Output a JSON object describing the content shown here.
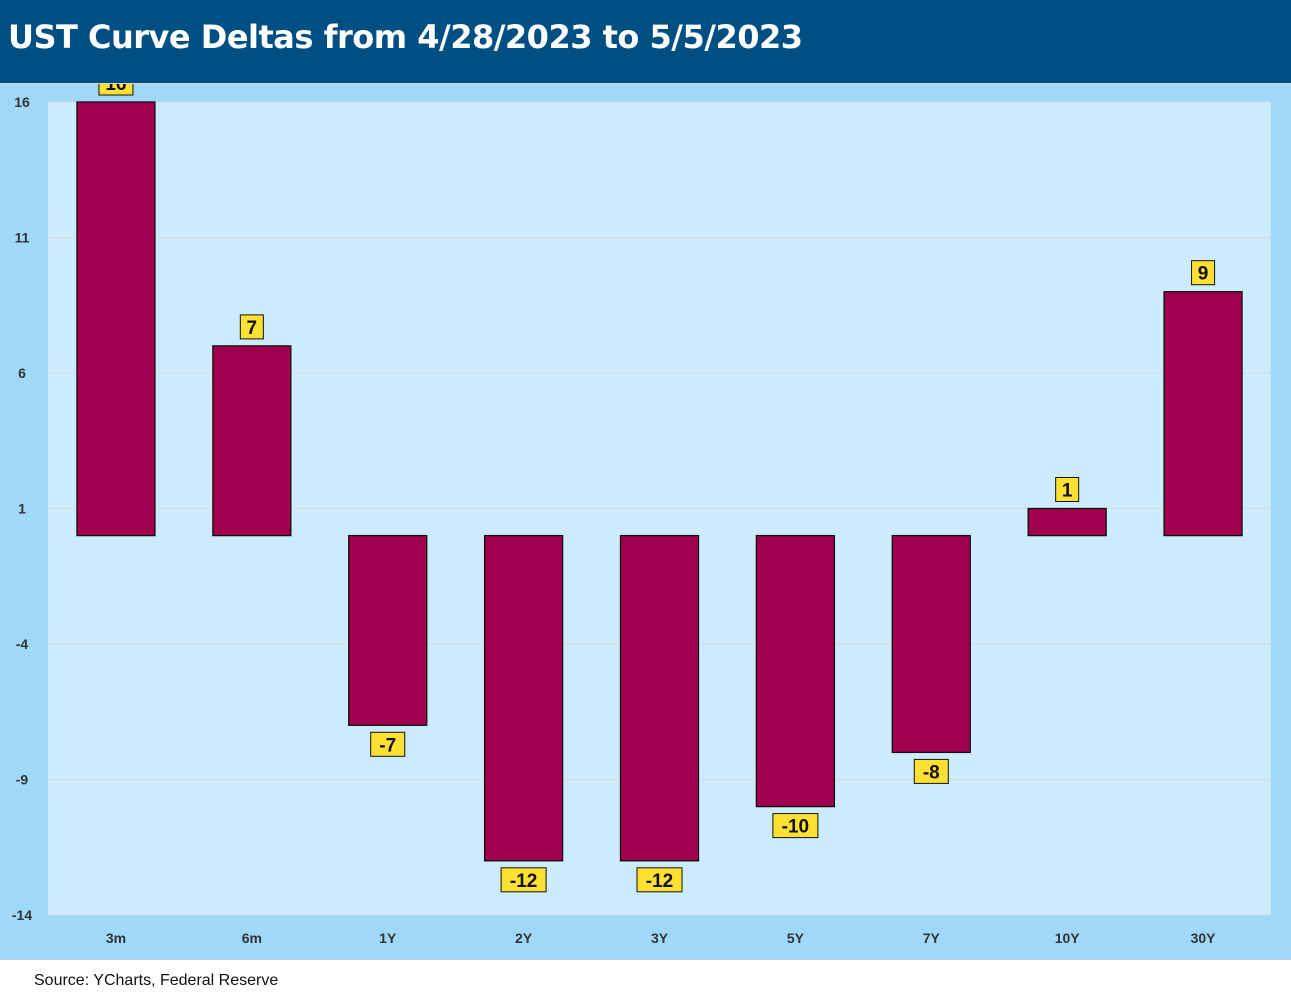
{
  "header": {
    "title": "UST Curve Deltas from 4/28/2023 to 5/5/2023"
  },
  "footer": {
    "source": "Source: YCharts, Federal Reserve"
  },
  "colors": {
    "header_bg": "#004F82",
    "frame_bg": "#9FD8F8",
    "plot_bg": "#CCEBFC",
    "bar_fill": "#A0004E",
    "label_fill": "#FFE033",
    "gridline": "#D9D9D9"
  },
  "chart_data": {
    "type": "bar",
    "title": "UST Curve Deltas from 4/28/2023 to 5/5/2023",
    "xlabel": "",
    "ylabel": "",
    "categories": [
      "3m",
      "6m",
      "1Y",
      "2Y",
      "3Y",
      "5Y",
      "7Y",
      "10Y",
      "30Y"
    ],
    "values": [
      16,
      7,
      -7,
      -12,
      -12,
      -10,
      -8,
      1,
      9
    ],
    "ylim": [
      -14,
      16
    ],
    "yticks": [
      -14,
      -9,
      -4,
      1,
      6,
      11,
      16
    ],
    "grid": true,
    "legend": "none",
    "data_labels": true
  }
}
